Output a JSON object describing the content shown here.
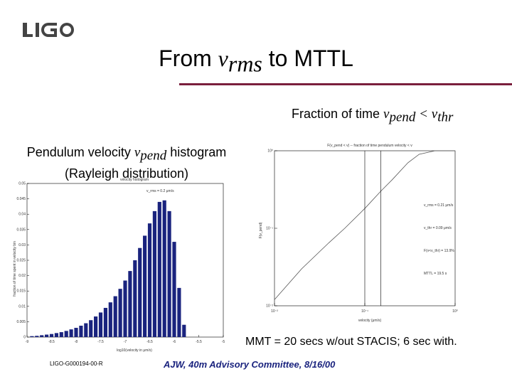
{
  "logo": {
    "text": "LIGO"
  },
  "title": {
    "prefix": "From ",
    "var": "v",
    "sub": "rms",
    "suffix": " to MTTL"
  },
  "caption_right": {
    "prefix": "Fraction of time ",
    "v1": "v",
    "sub1": "pend",
    "op": " < ",
    "v2": "v",
    "sub2": "thr"
  },
  "caption_left": {
    "line1_prefix": "Pendulum velocity ",
    "var": "v",
    "sub": "pend",
    "line1_suffix": " histogram",
    "line2": "(Rayleigh distribution)"
  },
  "note": "MMT = 20 secs w/out STACIS; 6 sec with.",
  "doc_number": "LIGO-G000194-00-R",
  "footer": "AJW, 40m Advisory Committee, 8/16/00",
  "colors": {
    "bars": "#1a237e",
    "rule": "#7a1f3d",
    "footer": "#1a237e"
  },
  "chart_data": [
    {
      "type": "bar",
      "title": "velocity histogram",
      "annotation": "v_rms = 0.2 μm/s",
      "xlabel": "log10(velocity in μm/s)",
      "ylabel": "fraction of time spent in velocity bin",
      "xlim": [
        -9,
        -5
      ],
      "ylim": [
        0,
        0.05
      ],
      "xticks": [
        "-9",
        "-8.5",
        "-8",
        "-7.5",
        "-7",
        "-6.5",
        "-6",
        "-5.5",
        "-5"
      ],
      "yticks": [
        "0",
        "0.005",
        "0.01",
        "0.015",
        "0.02",
        "0.025",
        "0.03",
        "0.035",
        "0.04",
        "0.045",
        "0.05"
      ],
      "x": [
        -8.9,
        -8.8,
        -8.7,
        -8.6,
        -8.5,
        -8.4,
        -8.3,
        -8.2,
        -8.1,
        -8.0,
        -7.9,
        -7.8,
        -7.7,
        -7.6,
        -7.5,
        -7.4,
        -7.3,
        -7.2,
        -7.1,
        -7.0,
        -6.9,
        -6.8,
        -6.7,
        -6.6,
        -6.5,
        -6.4,
        -6.3,
        -6.2,
        -6.1,
        -6.0,
        -5.9,
        -5.8
      ],
      "values": [
        0.0003,
        0.0004,
        0.0006,
        0.0008,
        0.001,
        0.0013,
        0.0016,
        0.002,
        0.0025,
        0.003,
        0.0037,
        0.0045,
        0.0055,
        0.0067,
        0.008,
        0.0095,
        0.0113,
        0.0133,
        0.0157,
        0.0184,
        0.0215,
        0.025,
        0.029,
        0.033,
        0.037,
        0.041,
        0.044,
        0.0445,
        0.041,
        0.031,
        0.016,
        0.004
      ]
    },
    {
      "type": "line",
      "title": "F(v_pend < v) -- fraction of time pendulum velocity < v",
      "xlabel": "velocity (μm/s)",
      "ylabel": "F(v_pend)",
      "xscale": "log",
      "yscale": "log",
      "xlim": [
        0.01,
        1
      ],
      "ylim": [
        0.01,
        1
      ],
      "xticks": [
        "10⁻²",
        "10⁻¹",
        "10⁰"
      ],
      "yticks": [
        "10⁻²",
        "10⁻¹",
        "10⁰"
      ],
      "x": [
        0.01,
        0.02,
        0.04,
        0.06,
        0.1,
        0.15,
        0.2,
        0.3,
        0.4,
        0.6,
        1.0
      ],
      "y": [
        0.012,
        0.03,
        0.065,
        0.1,
        0.18,
        0.3,
        0.42,
        0.7,
        0.9,
        1.0,
        1.0
      ],
      "vlines": [
        0.1,
        0.15
      ],
      "annotations": [
        "v_rms = 0.21 μm/s",
        "v_thr = 0.09 μm/s",
        "F(v<v_thr) = 13.9%",
        "MTTL = 19.5 s"
      ]
    }
  ]
}
